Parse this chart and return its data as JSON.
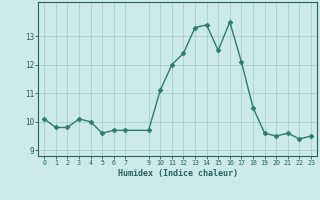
{
  "x": [
    0,
    1,
    2,
    3,
    4,
    5,
    6,
    7,
    9,
    10,
    11,
    12,
    13,
    14,
    15,
    16,
    17,
    18,
    19,
    20,
    21,
    22,
    23
  ],
  "y": [
    10.1,
    9.8,
    9.8,
    10.1,
    10.0,
    9.6,
    9.7,
    9.7,
    9.7,
    11.1,
    12.0,
    12.4,
    13.3,
    13.4,
    12.5,
    13.5,
    12.1,
    10.5,
    9.6,
    9.5,
    9.6,
    9.4,
    9.5
  ],
  "line_color": "#2d7d6e",
  "marker": "D",
  "marker_size": 2.5,
  "bg_color": "#cceaea",
  "grid_color": "#aacfcf",
  "xlabel": "Humidex (Indice chaleur)",
  "ylim": [
    8.8,
    14.2
  ],
  "xlim": [
    -0.5,
    23.5
  ],
  "yticks": [
    9,
    10,
    11,
    12,
    13
  ],
  "xticks": [
    0,
    1,
    2,
    3,
    4,
    5,
    6,
    7,
    9,
    10,
    11,
    12,
    13,
    14,
    15,
    16,
    17,
    18,
    19,
    20,
    21,
    22,
    23
  ],
  "xtick_labels": [
    "0",
    "1",
    "2",
    "3",
    "4",
    "5",
    "6",
    "7",
    "9",
    "10",
    "11",
    "12",
    "13",
    "14",
    "15",
    "16",
    "17",
    "18",
    "19",
    "20",
    "21",
    "22",
    "23"
  ],
  "font_color": "#2a6060",
  "linewidth": 1.0
}
